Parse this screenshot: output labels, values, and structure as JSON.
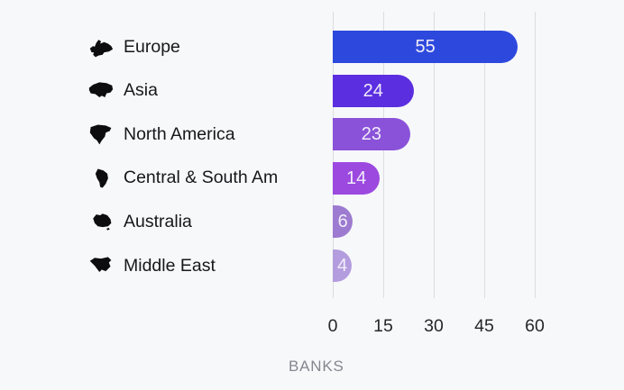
{
  "chart_data": {
    "type": "bar",
    "orientation": "horizontal",
    "title": "",
    "categories": [
      "Europe",
      "Asia",
      "North America",
      "Central & South Am",
      "Australia",
      "Middle East"
    ],
    "values": [
      55,
      24,
      23,
      14,
      6,
      4
    ],
    "bar_colors": [
      "#2d49dd",
      "#5b2ee0",
      "#8a52d9",
      "#9c49e0",
      "#9d7bd0",
      "#b49dde"
    ],
    "icons": [
      "europe-icon",
      "asia-icon",
      "north-america-icon",
      "central-south-america-icon",
      "australia-icon",
      "middle-east-icon"
    ],
    "xlabel": "BANKS",
    "ylabel": "",
    "x_ticks": [
      0,
      15,
      30,
      45,
      60
    ],
    "xlim": [
      0,
      60
    ],
    "grid": true,
    "value_labels": "inside",
    "legend": "none"
  },
  "colors": {
    "background": "#f7f8fa",
    "gridline": "#dcdde2",
    "category_text": "#17171c",
    "tick_text": "#26262b",
    "axis_label_text": "#86868f",
    "value_text": "#f1ecfa",
    "icon": "#0d0d0f"
  }
}
